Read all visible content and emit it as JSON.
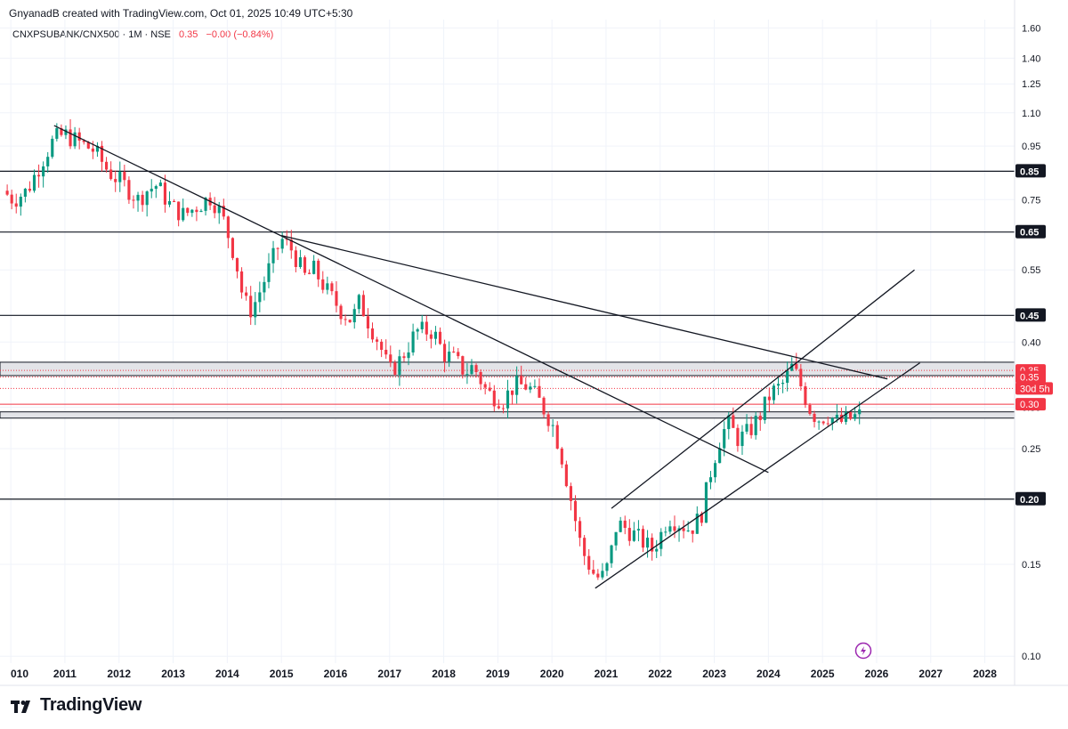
{
  "attribution": "GnyanadB created with TradingView.com, Oct 01, 2025 10:49 UTC+5:30",
  "legend": {
    "symbol": "CNXPSUBANK/CNX500 · 1M · NSE",
    "last": "0.35",
    "change": "−0.00 (−0.84%)"
  },
  "brand": {
    "name": "TradingView",
    "logo_icon": "tradingview-logo-icon"
  },
  "colors": {
    "up": "#089981",
    "down": "#f23645",
    "line": "#131722",
    "grid": "#f0f3fa",
    "zone": "#d1d4dc",
    "price_line": "#f23645"
  },
  "chart_data": {
    "type": "candlestick",
    "interval": "1M",
    "y_scale": "log",
    "ylim": [
      0.097,
      1.66
    ],
    "xlim": [
      2009.8,
      2028.55
    ],
    "grid": true,
    "x_ticks": [
      "010",
      "2011",
      "2012",
      "2013",
      "2014",
      "2015",
      "2016",
      "2017",
      "2018",
      "2019",
      "2020",
      "2021",
      "2022",
      "2023",
      "2024",
      "2025",
      "2026",
      "2027",
      "2028"
    ],
    "y_ticks": [
      "1.60",
      "1.40",
      "1.25",
      "1.10",
      "0.95",
      "0.85",
      "0.75",
      "0.65",
      "0.55",
      "0.45",
      "0.40",
      "0.35",
      "0.30",
      "0.25",
      "0.20",
      "0.15",
      "0.10"
    ],
    "horizontal_levels": [
      {
        "price": 0.85,
        "label": "0.85"
      },
      {
        "price": 0.65,
        "label": "0.65"
      },
      {
        "price": 0.45,
        "label": "0.45"
      },
      {
        "price": 0.2,
        "label": "0.20"
      }
    ],
    "zones": [
      {
        "from": 0.345,
        "to": 0.366
      },
      {
        "from": 0.286,
        "to": 0.294
      }
    ],
    "price_tags": [
      {
        "price": 0.353,
        "label": "0.35"
      },
      {
        "price": 0.343,
        "label": "0.35"
      },
      {
        "price": 0.326,
        "label": "30d 5h"
      },
      {
        "price": 0.304,
        "label": "0.30"
      }
    ],
    "trendlines": [
      {
        "x1": 2010.8,
        "y1": 1.04,
        "x2": 2024.0,
        "y2": 0.225
      },
      {
        "x1": 2015.0,
        "y1": 0.64,
        "x2": 2026.2,
        "y2": 0.34
      },
      {
        "x1": 2020.8,
        "y1": 0.135,
        "x2": 2026.8,
        "y2": 0.365
      },
      {
        "x1": 2021.1,
        "y1": 0.192,
        "x2": 2026.7,
        "y2": 0.55
      }
    ],
    "anchors": [
      [
        2009.85,
        0.78
      ],
      [
        2010.05,
        0.75
      ],
      [
        2010.3,
        0.78
      ],
      [
        2010.55,
        0.88
      ],
      [
        2010.8,
        0.98
      ],
      [
        2011.0,
        1.0
      ],
      [
        2011.3,
        0.96
      ],
      [
        2011.55,
        0.93
      ],
      [
        2011.8,
        0.85
      ],
      [
        2012.1,
        0.8
      ],
      [
        2012.35,
        0.75
      ],
      [
        2012.5,
        0.78
      ],
      [
        2012.7,
        0.8
      ],
      [
        2012.95,
        0.73
      ],
      [
        2013.2,
        0.7
      ],
      [
        2013.45,
        0.73
      ],
      [
        2013.7,
        0.76
      ],
      [
        2013.9,
        0.7
      ],
      [
        2014.15,
        0.58
      ],
      [
        2014.3,
        0.48
      ],
      [
        2014.45,
        0.46
      ],
      [
        2014.6,
        0.5
      ],
      [
        2014.85,
        0.58
      ],
      [
        2015.0,
        0.63
      ],
      [
        2015.2,
        0.6
      ],
      [
        2015.45,
        0.53
      ],
      [
        2015.6,
        0.55
      ],
      [
        2015.85,
        0.5
      ],
      [
        2016.1,
        0.46
      ],
      [
        2016.3,
        0.44
      ],
      [
        2016.45,
        0.48
      ],
      [
        2016.55,
        0.45
      ],
      [
        2016.8,
        0.4
      ],
      [
        2017.0,
        0.35
      ],
      [
        2017.2,
        0.37
      ],
      [
        2017.5,
        0.42
      ],
      [
        2017.8,
        0.42
      ],
      [
        2018.0,
        0.38
      ],
      [
        2018.2,
        0.37
      ],
      [
        2018.4,
        0.35
      ],
      [
        2018.55,
        0.36
      ],
      [
        2018.8,
        0.32
      ],
      [
        2019.1,
        0.31
      ],
      [
        2019.3,
        0.33
      ],
      [
        2019.55,
        0.33
      ],
      [
        2019.75,
        0.31
      ],
      [
        2020.0,
        0.28
      ],
      [
        2020.15,
        0.25
      ],
      [
        2020.35,
        0.2
      ],
      [
        2020.55,
        0.16
      ],
      [
        2020.75,
        0.145
      ],
      [
        2020.9,
        0.14
      ],
      [
        2021.05,
        0.15
      ],
      [
        2021.2,
        0.18
      ],
      [
        2021.4,
        0.175
      ],
      [
        2021.55,
        0.17
      ],
      [
        2021.7,
        0.165
      ],
      [
        2021.85,
        0.16
      ],
      [
        2022.0,
        0.17
      ],
      [
        2022.15,
        0.185
      ],
      [
        2022.35,
        0.18
      ],
      [
        2022.55,
        0.175
      ],
      [
        2022.75,
        0.185
      ],
      [
        2022.95,
        0.23
      ],
      [
        2023.1,
        0.26
      ],
      [
        2023.25,
        0.28
      ],
      [
        2023.45,
        0.26
      ],
      [
        2023.65,
        0.27
      ],
      [
        2023.85,
        0.29
      ],
      [
        2024.05,
        0.32
      ],
      [
        2024.25,
        0.33
      ],
      [
        2024.45,
        0.36
      ],
      [
        2024.6,
        0.33
      ],
      [
        2024.75,
        0.3
      ],
      [
        2024.9,
        0.285
      ],
      [
        2025.1,
        0.29
      ],
      [
        2025.3,
        0.28
      ],
      [
        2025.5,
        0.285
      ],
      [
        2025.7,
        0.29
      ],
      [
        2025.8,
        0.35
      ]
    ]
  }
}
